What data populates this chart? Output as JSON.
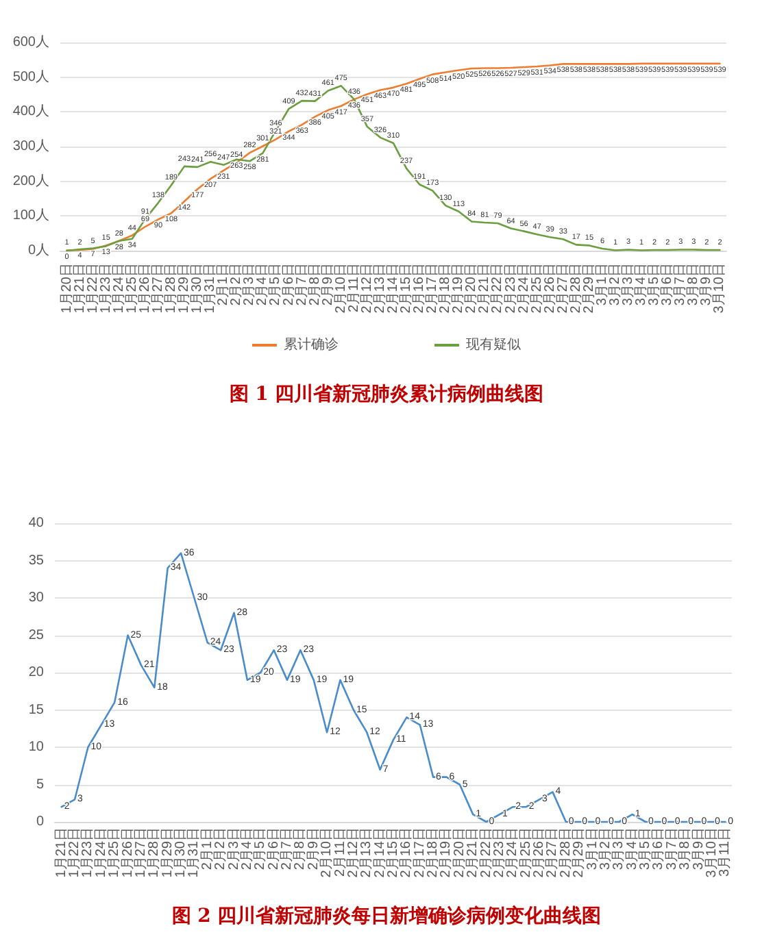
{
  "chart_data": [
    {
      "type": "line",
      "title": "图 1 四川省新冠肺炎累计病例曲线图",
      "categories": [
        "1月20日",
        "1月21日",
        "1月22日",
        "1月23日",
        "1月24日",
        "1月25日",
        "1月26日",
        "1月27日",
        "1月28日",
        "1月29日",
        "1月30日",
        "1月31日",
        "2月1日",
        "2月2日",
        "2月3日",
        "2月4日",
        "2月5日",
        "2月6日",
        "2月7日",
        "2月8日",
        "2月9日",
        "2月10日",
        "2月11日",
        "2月12日",
        "2月13日",
        "2月14日",
        "2月15日",
        "2月16日",
        "2月17日",
        "2月18日",
        "2月19日",
        "2月20日",
        "2月21日",
        "2月22日",
        "2月23日",
        "2月24日",
        "2月25日",
        "2月26日",
        "2月27日",
        "2月28日",
        "2月29日",
        "3月1日",
        "3月2日",
        "3月3日",
        "3月4日",
        "3月5日",
        "3月6日",
        "3月7日",
        "3月8日",
        "3月9日",
        "3月10日"
      ],
      "series": [
        {
          "name": "累计确诊",
          "color": "#ed7d31",
          "values": [
            1,
            2,
            5,
            15,
            28,
            44,
            69,
            90,
            108,
            142,
            177,
            207,
            231,
            254,
            282,
            301,
            321,
            344,
            363,
            386,
            405,
            417,
            436,
            451,
            463,
            470,
            481,
            495,
            508,
            514,
            520,
            525,
            526,
            526,
            527,
            529,
            531,
            534,
            538,
            538,
            538,
            538,
            538,
            538,
            539,
            539,
            539,
            539,
            539,
            539,
            539
          ]
        },
        {
          "name": "现有疑似",
          "color": "#6b9e3f",
          "values": [
            0,
            4,
            7,
            13,
            28,
            34,
            91,
            138,
            189,
            243,
            241,
            256,
            247,
            263,
            258,
            281,
            346,
            409,
            432,
            431,
            461,
            475,
            436,
            357,
            326,
            310,
            237,
            191,
            173,
            130,
            113,
            84,
            81,
            79,
            64,
            56,
            47,
            39,
            33,
            17,
            15,
            6,
            1,
            3,
            1,
            2,
            2,
            3,
            3,
            2,
            2
          ]
        }
      ],
      "ylim": [
        0,
        600
      ],
      "yticks": [
        {
          "value": 0,
          "label": "0人"
        },
        {
          "value": 100,
          "label": "100人"
        },
        {
          "value": 200,
          "label": "200人"
        },
        {
          "value": 300,
          "label": "300人"
        },
        {
          "value": 400,
          "label": "400人"
        },
        {
          "value": 500,
          "label": "500人"
        },
        {
          "value": 600,
          "label": "600人"
        }
      ],
      "grid": "y",
      "legend": "bottom",
      "marker": "none",
      "data_labels": true
    },
    {
      "type": "line",
      "title": "图 2 四川省新冠肺炎每日新增确诊病例变化曲线图",
      "categories": [
        "1月21日",
        "1月22日",
        "1月23日",
        "1月24日",
        "1月25日",
        "1月26日",
        "1月27日",
        "1月28日",
        "1月29日",
        "1月30日",
        "1月31日",
        "2月1日",
        "2月2日",
        "2月3日",
        "2月4日",
        "2月5日",
        "2月6日",
        "2月7日",
        "2月8日",
        "2月9日",
        "2月10日",
        "2月11日",
        "2月12日",
        "2月13日",
        "2月14日",
        "2月15日",
        "2月16日",
        "2月17日",
        "2月18日",
        "2月19日",
        "2月20日",
        "2月21日",
        "2月22日",
        "2月23日",
        "2月24日",
        "2月25日",
        "2月26日",
        "2月27日",
        "2月28日",
        "2月29日",
        "3月1日",
        "3月2日",
        "3月3日",
        "3月4日",
        "3月5日",
        "3月6日",
        "3月7日",
        "3月8日",
        "3月9日",
        "3月10日",
        "3月11日"
      ],
      "series": [
        {
          "color": "#4a8bcb",
          "values": [
            2,
            3,
            10,
            13,
            16,
            25,
            21,
            18,
            34,
            36,
            30,
            24,
            23,
            28,
            19,
            20,
            23,
            19,
            23,
            19,
            12,
            19,
            15,
            12,
            7,
            11,
            14,
            13,
            6,
            6,
            5,
            1,
            0,
            1,
            2,
            2,
            3,
            4,
            0,
            0,
            0,
            0,
            0,
            1,
            0,
            0,
            0,
            0,
            0,
            0,
            0
          ]
        }
      ],
      "ylim": [
        0,
        40
      ],
      "yticks": [
        0,
        5,
        10,
        15,
        20,
        25,
        30,
        35,
        40
      ],
      "grid": "y",
      "marker": "none",
      "data_labels": true
    }
  ]
}
